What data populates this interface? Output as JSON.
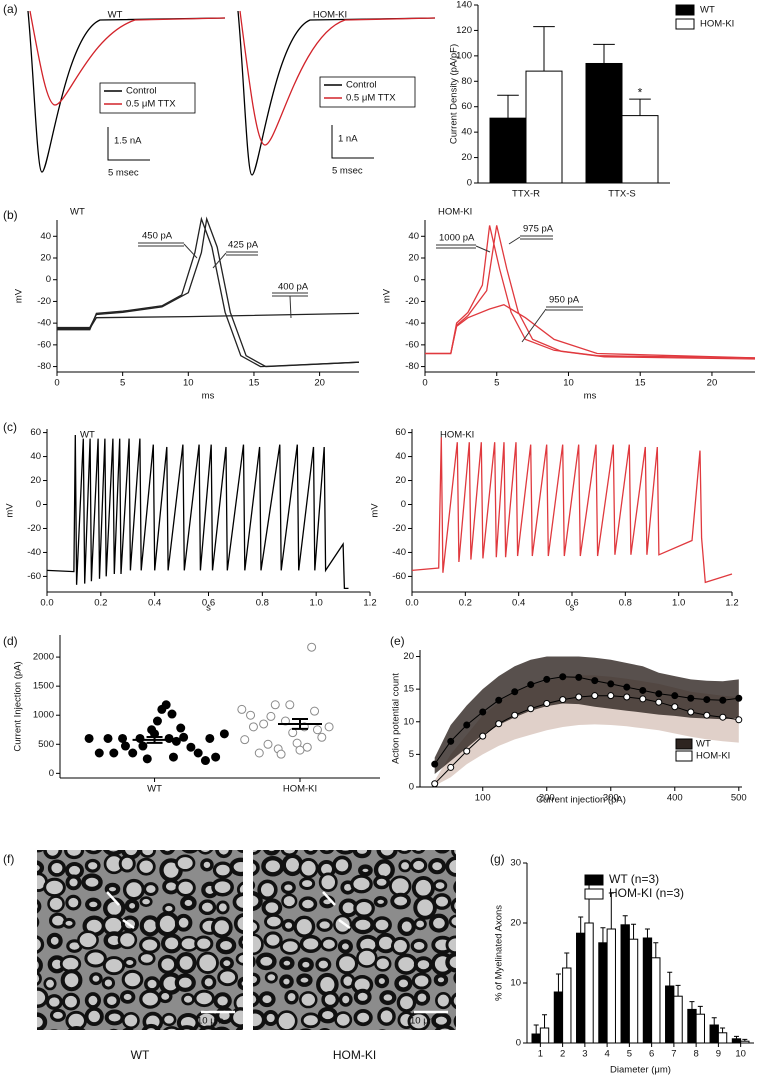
{
  "chart_data": [
    {
      "type": "trace",
      "label": "(a)",
      "title": "WT",
      "series": [
        {
          "name": "Control",
          "color": "#000000"
        },
        {
          "name": "0.5 μM TTX",
          "color": "#d2232a"
        }
      ],
      "scalebar_y": "1.5 nA",
      "scalebar_x": "5 msec"
    },
    {
      "type": "trace",
      "title": "HOM-KI",
      "series": [
        {
          "name": "Control",
          "color": "#000000"
        },
        {
          "name": "0.5 μM TTX",
          "color": "#d2232a"
        }
      ],
      "scalebar_y": "1 nA",
      "scalebar_x": "5 msec"
    },
    {
      "type": "bar",
      "categories": [
        "TTX-R",
        "TTX-S"
      ],
      "ylabel": "Current Density (pA/pF)",
      "ylim": [
        0,
        140
      ],
      "yticks": [
        0,
        20,
        40,
        60,
        80,
        100,
        120,
        140
      ],
      "series": [
        {
          "name": "WT",
          "color": "#000000",
          "values": [
            51,
            94
          ],
          "errors": [
            18,
            15
          ]
        },
        {
          "name": "HOM-KI",
          "color": "#ffffff",
          "values": [
            88,
            53
          ],
          "errors": [
            35,
            13
          ]
        }
      ],
      "annotation": "*",
      "legend": "upper right"
    },
    {
      "type": "line",
      "label": "(b)",
      "title": "WT",
      "xlabel": "ms",
      "ylabel": "mV",
      "xlim": [
        0,
        23
      ],
      "xticks": [
        0,
        5,
        10,
        15,
        20
      ],
      "ylim": [
        -85,
        55
      ],
      "yticks": [
        -80,
        -60,
        -40,
        -20,
        0,
        20,
        40
      ],
      "series": [
        {
          "name": "450 pA",
          "color": "#222222",
          "label_color": "#111111",
          "x": [
            0,
            2.5,
            3,
            5,
            8,
            9.5,
            10.5,
            11,
            11.8,
            12.8,
            14,
            15.5,
            23
          ],
          "values": [
            -46,
            -46,
            -31,
            -29,
            -24,
            -14,
            25,
            56,
            30,
            -30,
            -70,
            -80,
            -76
          ]
        },
        {
          "name": "425 pA",
          "color": "#222222",
          "label_color": "#8b3a8b",
          "x": [
            0,
            2.5,
            3,
            5,
            8,
            10,
            11,
            11.4,
            12.2,
            13.2,
            14.4,
            15.9,
            23
          ],
          "values": [
            -44,
            -44,
            -32,
            -30,
            -25,
            -12,
            25,
            56,
            30,
            -30,
            -70,
            -80,
            -76
          ]
        },
        {
          "name": "400 pA",
          "color": "#222222",
          "label_color": "#111111",
          "x": [
            0,
            2.5,
            3,
            10,
            23
          ],
          "values": [
            -45,
            -45,
            -35,
            -34,
            -31
          ]
        }
      ]
    },
    {
      "type": "line",
      "title": "HOM-KI",
      "xlabel": "ms",
      "ylabel": "mV",
      "xlim": [
        0,
        23
      ],
      "xticks": [
        0,
        5,
        10,
        15,
        20
      ],
      "ylim": [
        -85,
        55
      ],
      "yticks": [
        -80,
        -60,
        -40,
        -20,
        0,
        20,
        40
      ],
      "series": [
        {
          "name": "1000 pA",
          "color": "#e0393e",
          "label_color": "#111111",
          "x": [
            0,
            1.8,
            2.2,
            3,
            4,
            4.5,
            5.2,
            6,
            7,
            9,
            12,
            23
          ],
          "values": [
            -68,
            -68,
            -40,
            -30,
            -5,
            50,
            10,
            -30,
            -55,
            -65,
            -70,
            -72
          ]
        },
        {
          "name": "975 pA",
          "color": "#e0393e",
          "label_color": "#8b3a8b",
          "x": [
            0,
            1.8,
            2.2,
            3,
            4.3,
            5,
            5.7,
            6.5,
            7.5,
            9.5,
            12.5,
            23
          ],
          "values": [
            -68,
            -68,
            -42,
            -33,
            -10,
            50,
            10,
            -30,
            -55,
            -66,
            -71,
            -73
          ]
        },
        {
          "name": "950 pA",
          "color": "#e0393e",
          "label_color": "#111111",
          "x": [
            0,
            1.8,
            2.2,
            3,
            4.5,
            5.5,
            7,
            9,
            12,
            23
          ],
          "values": [
            -68,
            -68,
            -43,
            -35,
            -27,
            -23,
            -35,
            -55,
            -68,
            -72
          ]
        }
      ]
    },
    {
      "type": "line",
      "label": "(c)",
      "title": "WT",
      "xlabel": "s",
      "ylabel": "mV",
      "xlim": [
        0,
        1.2
      ],
      "xticks": [
        {
          "value": 0,
          "label": "0.0"
        },
        0.2,
        0.4,
        0.6,
        0.8,
        {
          "value": 1,
          "label": "1.0"
        },
        1.2
      ],
      "ylim": [
        -73,
        63
      ],
      "yticks": [
        -60,
        -40,
        -20,
        0,
        20,
        40,
        60
      ],
      "series": [
        {
          "color": "#000000",
          "x": [
            0,
            0.1,
            0.105,
            0.11,
            0.135,
            0.14,
            0.16,
            0.165,
            0.19,
            0.195,
            0.215,
            0.22,
            0.245,
            0.25,
            0.27,
            0.275,
            0.305,
            0.31,
            0.345,
            0.35,
            0.395,
            0.4,
            0.445,
            0.45,
            0.505,
            0.51,
            0.565,
            0.57,
            0.61,
            0.615,
            0.665,
            0.67,
            0.73,
            0.735,
            0.79,
            0.795,
            0.865,
            0.87,
            0.93,
            0.935,
            0.99,
            0.995,
            1.03,
            1.035,
            1.1,
            1.105,
            1.12
          ],
          "values": [
            -55,
            -56,
            58,
            -67,
            55,
            -66,
            55,
            -64,
            55,
            -62,
            55,
            -60,
            55,
            -58,
            55,
            -58,
            55,
            -55,
            55,
            -55,
            50,
            -55,
            48,
            -55,
            50,
            -55,
            50,
            -55,
            50,
            -55,
            48,
            -55,
            50,
            -55,
            48,
            -55,
            50,
            -55,
            50,
            -55,
            48,
            -55,
            48,
            -55,
            -33,
            -70,
            -70
          ]
        }
      ]
    },
    {
      "type": "line",
      "title": "HOM-KI",
      "xlabel": "s",
      "ylabel": "mV",
      "xlim": [
        0,
        1.2
      ],
      "xticks": [
        {
          "value": 0,
          "label": "0.0"
        },
        0.2,
        0.4,
        0.6,
        0.8,
        {
          "value": 1,
          "label": "1.0"
        },
        1.2
      ],
      "ylim": [
        -73,
        63
      ],
      "yticks": [
        -60,
        -40,
        -20,
        0,
        20,
        40,
        60
      ],
      "series": [
        {
          "color": "#e0393e",
          "x": [
            0,
            0.1,
            0.11,
            0.116,
            0.17,
            0.176,
            0.215,
            0.221,
            0.26,
            0.266,
            0.31,
            0.316,
            0.345,
            0.351,
            0.39,
            0.396,
            0.445,
            0.451,
            0.505,
            0.511,
            0.565,
            0.571,
            0.625,
            0.631,
            0.69,
            0.696,
            0.755,
            0.761,
            0.815,
            0.821,
            0.875,
            0.881,
            0.92,
            0.926,
            1.05,
            1.08,
            1.086,
            1.1,
            1.2
          ],
          "values": [
            -55,
            -53,
            56,
            -57,
            52,
            -48,
            52,
            -46,
            52,
            -45,
            52,
            -44,
            52,
            -44,
            52,
            -43,
            50,
            -43,
            50,
            -43,
            50,
            -43,
            50,
            -43,
            50,
            -43,
            50,
            -42,
            50,
            -42,
            48,
            -42,
            48,
            -42,
            -30,
            45,
            -28,
            -65,
            -58
          ]
        }
      ]
    },
    {
      "type": "scatter",
      "label": "(d)",
      "ylabel": "Current Injection (pA)",
      "xlim": [
        0.35,
        2.55
      ],
      "xticks": [
        {
          "value": 1,
          "label": "WT"
        },
        {
          "value": 2,
          "label": "HOM-KI"
        }
      ],
      "ylim": [
        -80,
        2380
      ],
      "yticks": [
        0,
        500,
        1000,
        1500,
        2000
      ],
      "series": [
        {
          "color": "#000000",
          "fill": "#000000",
          "x": [
            0.55,
            0.62,
            0.68,
            0.72,
            0.78,
            0.8,
            0.85,
            0.9,
            0.92,
            0.95,
            0.98,
            1.0,
            1.02,
            1.05,
            1.08,
            1.1,
            1.12,
            1.13,
            1.15,
            1.18,
            1.2,
            1.25,
            1.3,
            1.35,
            1.38,
            1.42,
            1.48
          ],
          "values": [
            600,
            350,
            600,
            350,
            600,
            470,
            350,
            600,
            470,
            250,
            750,
            680,
            900,
            1100,
            1180,
            600,
            1020,
            280,
            550,
            780,
            620,
            450,
            350,
            220,
            600,
            280,
            680
          ],
          "mean": 575,
          "error": 50
        },
        {
          "color": "#8a8a8a",
          "fill": "#ffffff",
          "x": [
            1.6,
            1.62,
            1.66,
            1.68,
            1.72,
            1.75,
            1.78,
            1.8,
            1.83,
            1.85,
            1.87,
            1.9,
            1.93,
            1.95,
            1.98,
            2.0,
            2.03,
            2.05,
            2.08,
            2.1,
            2.12,
            2.15,
            2.2
          ],
          "values": [
            1100,
            580,
            1000,
            800,
            350,
            850,
            500,
            980,
            1180,
            420,
            330,
            900,
            1180,
            700,
            520,
            400,
            800,
            450,
            2170,
            1070,
            750,
            620,
            800
          ],
          "mean": 850,
          "error": 85
        }
      ]
    },
    {
      "type": "band",
      "label": "(e)",
      "xlabel": "Current injection (pA)",
      "ylabel": "Action potential count",
      "x": [
        25,
        50,
        75,
        100,
        125,
        150,
        175,
        200,
        225,
        250,
        275,
        300,
        325,
        350,
        375,
        400,
        425,
        450,
        475,
        500
      ],
      "xlim": [
        2,
        505
      ],
      "xticks": [
        100,
        200,
        300,
        400,
        500
      ],
      "ylim": [
        0,
        21
      ],
      "yticks": [
        0,
        5,
        10,
        15,
        20
      ],
      "legend": "lower right",
      "series": [
        {
          "name": "WT",
          "color": "#000000",
          "fill": "#000000",
          "band_color": "#2e2420",
          "values": [
            3.5,
            7,
            9.5,
            11.5,
            13.3,
            14.6,
            15.7,
            16.5,
            16.9,
            16.8,
            16.3,
            15.8,
            15.3,
            14.8,
            14.3,
            14,
            13.6,
            13.4,
            13.3,
            13.6
          ],
          "low": [
            2,
            4,
            6,
            8,
            9.5,
            10.7,
            11.7,
            12.4,
            12.8,
            12.7,
            12.3,
            12,
            11.7,
            11.4,
            11.1,
            10.9,
            10.6,
            10.5,
            10.4,
            10.6
          ],
          "high": [
            4.5,
            9.5,
            12.5,
            15,
            17,
            18.5,
            19.5,
            20,
            20,
            20,
            19.8,
            19.5,
            19,
            18.5,
            17.5,
            17,
            16.5,
            16.3,
            16.2,
            16.5
          ]
        },
        {
          "name": "HOM-KI",
          "color": "#000000",
          "fill": "#ffffff",
          "band_color": "#d8c4bc",
          "values": [
            0.5,
            3,
            5.5,
            7.8,
            9.7,
            11,
            12,
            12.8,
            13.4,
            13.8,
            14,
            14,
            13.8,
            13.5,
            13,
            12.3,
            11.5,
            11,
            10.7,
            10.3
          ],
          "low": [
            0.2,
            1.5,
            3.5,
            5,
            6.3,
            7.3,
            8,
            8.7,
            9.2,
            9.5,
            9.6,
            9.5,
            9.3,
            9,
            8.7,
            8.2,
            7.7,
            7.3,
            7,
            6.8
          ],
          "high": [
            1,
            5,
            8,
            11,
            13,
            14.6,
            15.6,
            16.3,
            16.8,
            17.1,
            17.1,
            16.9,
            16.6,
            16.2,
            15.8,
            15.2,
            14.6,
            14.3,
            14,
            13.8
          ]
        }
      ]
    },
    {
      "type": "image",
      "label": "(f)",
      "panels": [
        "WT",
        "HOM-KI"
      ],
      "scalebar": "10 μm"
    },
    {
      "type": "bar",
      "label": "(g)",
      "xlabel": "Diameter (μm)",
      "ylabel": "% of Myelinated Axons",
      "x": [
        1,
        2,
        3,
        4,
        5,
        6,
        7,
        8,
        9,
        10
      ],
      "xlim": [
        0.4,
        10.6
      ],
      "xticks": [
        1,
        2,
        3,
        4,
        5,
        6,
        7,
        8,
        9,
        10
      ],
      "ylim": [
        0,
        30
      ],
      "yticks": [
        0,
        10,
        20,
        30
      ],
      "legend": "upper right",
      "series": [
        {
          "name": "WT (n=3)",
          "color": "#000000",
          "values": [
            1.5,
            8.5,
            18.3,
            16.7,
            19.7,
            17.5,
            9.5,
            5.6,
            3,
            0.7
          ],
          "errors": [
            1.5,
            3,
            2.7,
            2.5,
            1.5,
            1.5,
            2.3,
            1.3,
            1.2,
            0.4
          ]
        },
        {
          "name": "HOM-KI (n=3)",
          "color": "#ffffff",
          "values": [
            2.5,
            12.5,
            20,
            19,
            17.3,
            14.2,
            7.8,
            4.8,
            1.7,
            0.3
          ],
          "errors": [
            2.2,
            2.5,
            6.5,
            6,
            2.5,
            2.5,
            1.8,
            1.3,
            0.8,
            0.3
          ]
        }
      ]
    }
  ]
}
